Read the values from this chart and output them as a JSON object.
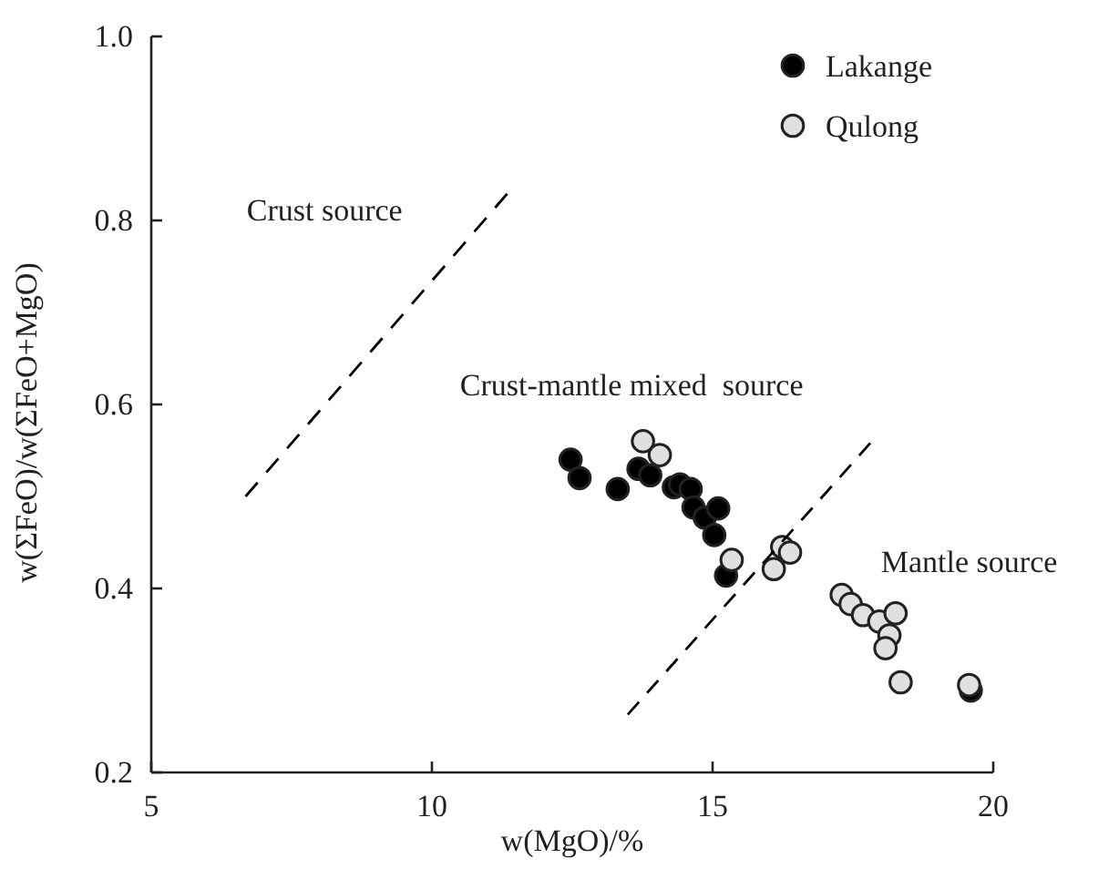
{
  "chart_data": {
    "type": "scatter",
    "xlabel": "w(MgO)/%",
    "ylabel": "w(ΣFeO)/w(ΣFeO+MgO)",
    "xlim": [
      5,
      20
    ],
    "xticks": [
      5,
      10,
      15,
      20
    ],
    "ylim": [
      0.2,
      1.0
    ],
    "yticks": [
      0.2,
      0.4,
      0.6,
      0.8,
      {
        "value": 1.0,
        "label": "1.0"
      }
    ],
    "grid": false,
    "legend": "top right",
    "annotations": [
      "Crust source",
      "Crust-mantle mixed  source",
      "Mantle source"
    ],
    "series": [
      {
        "name": "Lakange",
        "color": "#000000",
        "marker": "circle",
        "x": [
          12.47,
          12.63,
          13.31,
          13.68,
          13.89,
          14.31,
          14.42,
          14.61,
          14.66,
          14.86,
          15.1,
          15.03,
          15.24,
          19.6
        ],
        "values": [
          0.54,
          0.52,
          0.508,
          0.53,
          0.523,
          0.51,
          0.513,
          0.508,
          0.488,
          0.477,
          0.487,
          0.458,
          0.414,
          0.289
        ]
      },
      {
        "name": "Qulong",
        "color": "#e0e0e0",
        "marker": "circle",
        "x": [
          13.76,
          14.06,
          15.34,
          16.24,
          16.38,
          16.09,
          17.3,
          17.46,
          17.68,
          17.97,
          18.26,
          18.15,
          18.08,
          18.35,
          19.57
        ],
        "values": [
          0.56,
          0.545,
          0.431,
          0.445,
          0.439,
          0.421,
          0.393,
          0.383,
          0.371,
          0.364,
          0.373,
          0.349,
          0.335,
          0.298,
          0.295
        ]
      },
      {
        "type": "line",
        "color": "#000000",
        "line_style": "dashed",
        "marker": "none",
        "x": [
          6.68,
          11.34
        ],
        "values": [
          0.5,
          0.829
        ]
      },
      {
        "type": "line",
        "color": "#000000",
        "line_style": "dashed",
        "marker": "none",
        "x": [
          13.49,
          17.81
        ],
        "values": [
          0.263,
          0.558
        ]
      }
    ]
  }
}
